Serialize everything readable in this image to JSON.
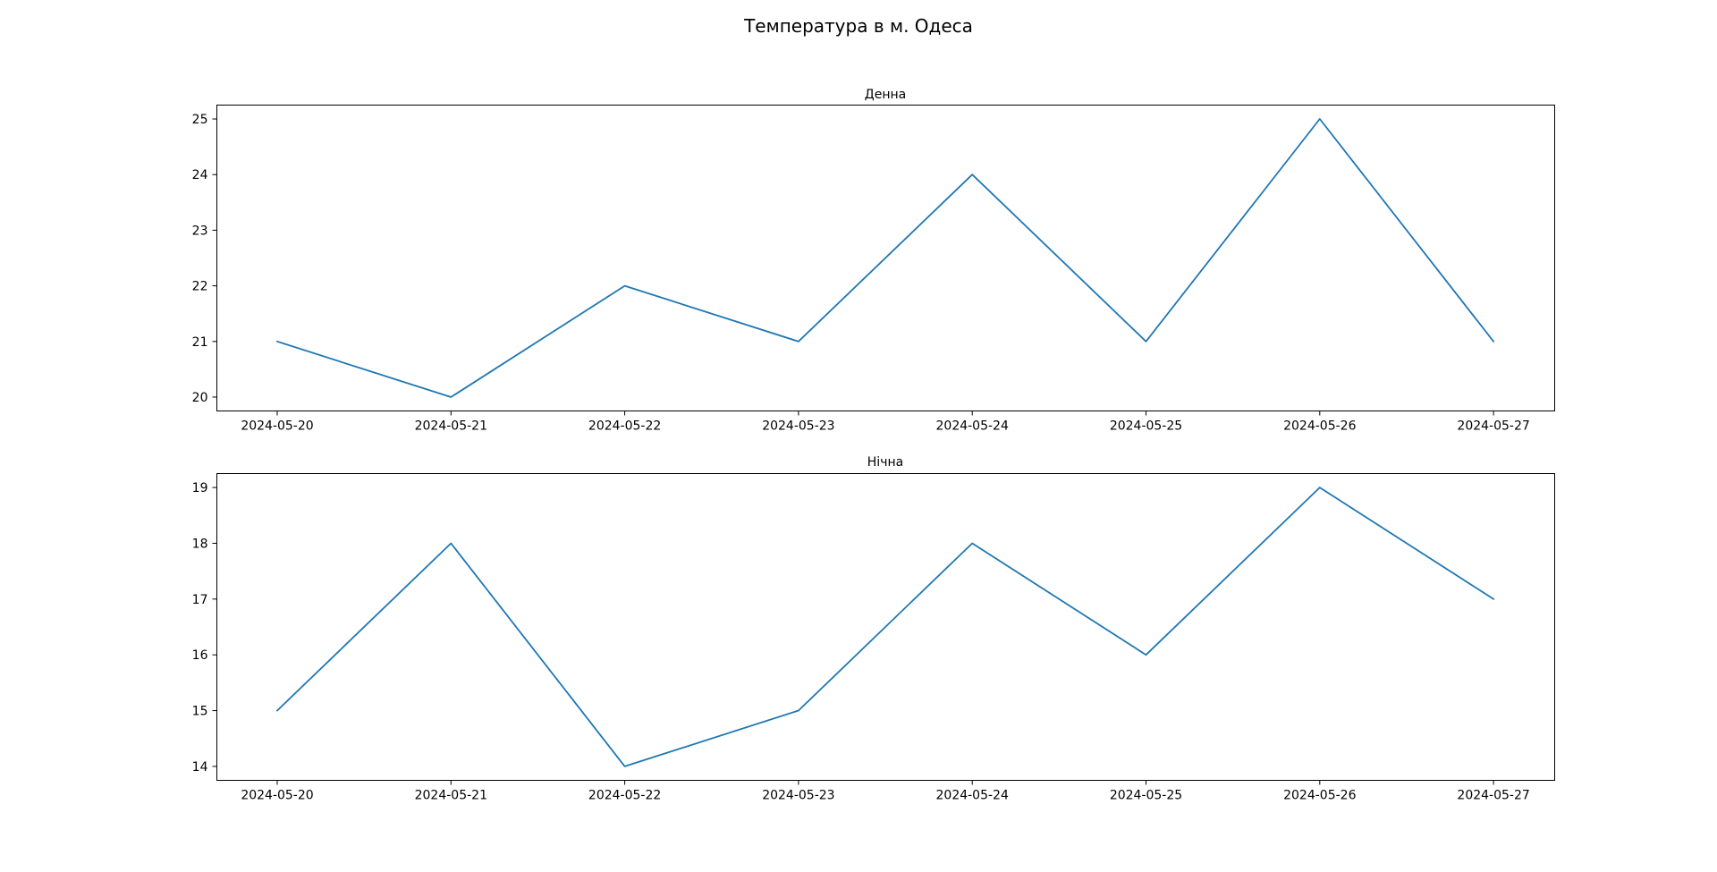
{
  "figure": {
    "title": "Температура в м. Одеса"
  },
  "chart_data": [
    {
      "type": "line",
      "title": "Денна",
      "xlabel": "",
      "ylabel": "",
      "x": [
        "2024-05-20",
        "2024-05-21",
        "2024-05-22",
        "2024-05-23",
        "2024-05-24",
        "2024-05-25",
        "2024-05-26",
        "2024-05-27"
      ],
      "series": [
        {
          "values": [
            21,
            20,
            22,
            21,
            24,
            21,
            25,
            21
          ],
          "color": "#1f77b4"
        }
      ],
      "yticks": [
        20,
        21,
        22,
        23,
        24,
        25
      ],
      "ylim": [
        19.75,
        25.25
      ],
      "grid": false
    },
    {
      "type": "line",
      "title": "Нічна",
      "xlabel": "",
      "ylabel": "",
      "x": [
        "2024-05-20",
        "2024-05-21",
        "2024-05-22",
        "2024-05-23",
        "2024-05-24",
        "2024-05-25",
        "2024-05-26",
        "2024-05-27"
      ],
      "series": [
        {
          "values": [
            15,
            18,
            14,
            15,
            18,
            16,
            19,
            17
          ],
          "color": "#1f77b4"
        }
      ],
      "yticks": [
        14,
        15,
        16,
        17,
        18,
        19
      ],
      "ylim": [
        13.75,
        19.25
      ],
      "grid": false
    }
  ]
}
